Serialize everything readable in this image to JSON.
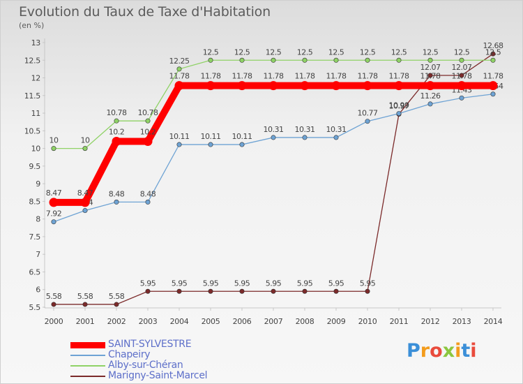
{
  "title": "Evolution du Taux de Taxe d'Habitation",
  "unit_label": "(en %)",
  "logo": {
    "text": "Proxiti"
  },
  "chart_data": {
    "type": "line",
    "x": [
      "2000",
      "2001",
      "2002",
      "2003",
      "2004",
      "2005",
      "2006",
      "2007",
      "2008",
      "2009",
      "2010",
      "2011",
      "2012",
      "2013",
      "2014"
    ],
    "ylim": [
      5.5,
      13
    ],
    "yticks": [
      "5.5",
      "6",
      "6.5",
      "7",
      "7.5",
      "8",
      "8.5",
      "9",
      "9.5",
      "10",
      "10.5",
      "11",
      "11.5",
      "12",
      "12.5",
      "13"
    ],
    "grid": false,
    "legend_placement": "bottom-left",
    "series": [
      {
        "name": "SAINT-SYLVESTRE",
        "color": "#ff0000",
        "values": [
          8.47,
          8.47,
          10.2,
          10.2,
          11.78,
          11.78,
          11.78,
          11.78,
          11.78,
          11.78,
          11.78,
          11.78,
          11.78,
          11.78,
          11.78
        ],
        "labels": [
          "8.47",
          "8.47",
          "10.2",
          "10.2",
          "11.78",
          "11.78",
          "11.78",
          "11.78",
          "11.78",
          "11.78",
          "11.78",
          "11.78",
          "11.78",
          "11.78",
          "11.78"
        ]
      },
      {
        "name": "Chapeiry",
        "color": "#6ea3d4",
        "values": [
          7.92,
          8.24,
          8.48,
          8.48,
          10.11,
          10.11,
          10.11,
          10.31,
          10.31,
          10.31,
          10.77,
          10.99,
          11.26,
          11.43,
          11.54
        ],
        "labels": [
          "7.92",
          "8.24",
          "8.48",
          "8.48",
          "10.11",
          "10.11",
          "10.11",
          "10.31",
          "10.31",
          "10.31",
          "10.77",
          "10.99",
          "11.26",
          "11.43",
          "11.54"
        ]
      },
      {
        "name": "Alby-sur-Chéran",
        "color": "#8fd266",
        "values": [
          10,
          10,
          10.78,
          10.78,
          12.25,
          12.5,
          12.5,
          12.5,
          12.5,
          12.5,
          12.5,
          12.5,
          12.5,
          12.5,
          12.5
        ],
        "labels": [
          "10",
          "10",
          "10.78",
          "10.78",
          "12.25",
          "12.5",
          "12.5",
          "12.5",
          "12.5",
          "12.5",
          "12.5",
          "12.5",
          "12.5",
          "12.5",
          "12.5"
        ]
      },
      {
        "name": "Marigny-Saint-Marcel",
        "color": "#7b2a2a",
        "values": [
          5.58,
          5.58,
          5.58,
          5.95,
          5.95,
          5.95,
          5.95,
          5.95,
          5.95,
          5.95,
          5.95,
          10.97,
          12.07,
          12.07,
          12.68
        ],
        "labels": [
          "5.58",
          "5.58",
          "5.58",
          "5.95",
          "5.95",
          "5.95",
          "5.95",
          "5.95",
          "5.95",
          "5.95",
          "5.95",
          "10.97",
          "12.07",
          "12.07",
          "12.68"
        ]
      }
    ]
  }
}
